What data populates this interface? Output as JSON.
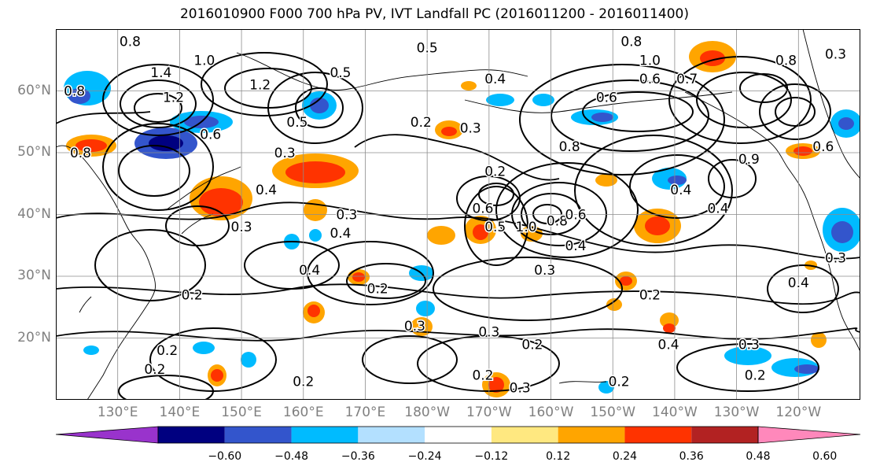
{
  "title": "2016010900 F000 700 hPa PV, IVT Landfall PC (2016011200 - 2016011400)",
  "lat_labels": [
    {
      "text": "60°N",
      "lat": 60
    },
    {
      "text": "50°N",
      "lat": 50
    },
    {
      "text": "40°N",
      "lat": 40
    },
    {
      "text": "30°N",
      "lat": 30
    },
    {
      "text": "20°N",
      "lat": 20
    }
  ],
  "lon_labels": [
    {
      "text": "130°E",
      "lon": 130
    },
    {
      "text": "140°E",
      "lon": 140
    },
    {
      "text": "150°E",
      "lon": 150
    },
    {
      "text": "160°E",
      "lon": 160
    },
    {
      "text": "170°E",
      "lon": 170
    },
    {
      "text": "180°W",
      "lon": 180
    },
    {
      "text": "170°W",
      "lon": 190
    },
    {
      "text": "160°W",
      "lon": 200
    },
    {
      "text": "150°W",
      "lon": 210
    },
    {
      "text": "140°W",
      "lon": 220
    },
    {
      "text": "130°W",
      "lon": 230
    },
    {
      "text": "120°W",
      "lon": 240
    }
  ],
  "map_extent": {
    "lon_min": 120,
    "lon_max": 250,
    "lat_min": 10,
    "lat_max": 70
  },
  "contour_labels": [
    {
      "text": "0.8",
      "lon": 132,
      "lat": 68
    },
    {
      "text": "1.0",
      "lon": 144,
      "lat": 65
    },
    {
      "text": "1.4",
      "lon": 137,
      "lat": 63
    },
    {
      "text": "1.2",
      "lon": 139,
      "lat": 59
    },
    {
      "text": "1.2",
      "lon": 153,
      "lat": 61
    },
    {
      "text": "0.8",
      "lon": 123,
      "lat": 60
    },
    {
      "text": "0.6",
      "lon": 145,
      "lat": 53
    },
    {
      "text": "0.8",
      "lon": 124,
      "lat": 50
    },
    {
      "text": "0.3",
      "lon": 157,
      "lat": 50
    },
    {
      "text": "0.5",
      "lon": 159,
      "lat": 55
    },
    {
      "text": "0.5",
      "lon": 166,
      "lat": 63
    },
    {
      "text": "0.5",
      "lon": 180,
      "lat": 67
    },
    {
      "text": "0.4",
      "lon": 191,
      "lat": 62
    },
    {
      "text": "0.2",
      "lon": 179,
      "lat": 55
    },
    {
      "text": "0.3",
      "lon": 187,
      "lat": 54
    },
    {
      "text": "0.2",
      "lon": 191,
      "lat": 47
    },
    {
      "text": "0.4",
      "lon": 154,
      "lat": 44
    },
    {
      "text": "0.3",
      "lon": 150,
      "lat": 38
    },
    {
      "text": "0.3",
      "lon": 167,
      "lat": 40
    },
    {
      "text": "0.4",
      "lon": 166,
      "lat": 37
    },
    {
      "text": "0.4",
      "lon": 161,
      "lat": 31
    },
    {
      "text": "0.2",
      "lon": 142,
      "lat": 27
    },
    {
      "text": "0.2",
      "lon": 172,
      "lat": 28
    },
    {
      "text": "0.3",
      "lon": 178,
      "lat": 22
    },
    {
      "text": "0.2",
      "lon": 138,
      "lat": 18
    },
    {
      "text": "0.2",
      "lon": 136,
      "lat": 15
    },
    {
      "text": "0.2",
      "lon": 160,
      "lat": 13
    },
    {
      "text": "0.6",
      "lon": 189,
      "lat": 41
    },
    {
      "text": "0.5",
      "lon": 191,
      "lat": 38
    },
    {
      "text": "1.0",
      "lon": 196,
      "lat": 38
    },
    {
      "text": "0.8",
      "lon": 201,
      "lat": 39
    },
    {
      "text": "0.6",
      "lon": 204,
      "lat": 40
    },
    {
      "text": "0.4",
      "lon": 204,
      "lat": 35
    },
    {
      "text": "0.3",
      "lon": 199,
      "lat": 31
    },
    {
      "text": "0.8",
      "lon": 203,
      "lat": 51
    },
    {
      "text": "0.6",
      "lon": 209,
      "lat": 59
    },
    {
      "text": "0.4",
      "lon": 221,
      "lat": 44
    },
    {
      "text": "0.4",
      "lon": 227,
      "lat": 41
    },
    {
      "text": "0.8",
      "lon": 213,
      "lat": 68
    },
    {
      "text": "1.0",
      "lon": 216,
      "lat": 65
    },
    {
      "text": "0.7",
      "lon": 222,
      "lat": 62
    },
    {
      "text": "0.6",
      "lon": 216,
      "lat": 62
    },
    {
      "text": "0.8",
      "lon": 238,
      "lat": 65
    },
    {
      "text": "0.3",
      "lon": 246,
      "lat": 66
    },
    {
      "text": "0.9",
      "lon": 232,
      "lat": 49
    },
    {
      "text": "0.6",
      "lon": 244,
      "lat": 51
    },
    {
      "text": "0.3",
      "lon": 246,
      "lat": 33
    },
    {
      "text": "0.4",
      "lon": 240,
      "lat": 29
    },
    {
      "text": "0.2",
      "lon": 216,
      "lat": 27
    },
    {
      "text": "0.4",
      "lon": 219,
      "lat": 19
    },
    {
      "text": "0.3",
      "lon": 232,
      "lat": 19
    },
    {
      "text": "0.2",
      "lon": 233,
      "lat": 14
    },
    {
      "text": "0.2",
      "lon": 211,
      "lat": 13
    },
    {
      "text": "0.3",
      "lon": 195,
      "lat": 12
    },
    {
      "text": "0.2",
      "lon": 189,
      "lat": 14
    },
    {
      "text": "0.3",
      "lon": 190,
      "lat": 21
    },
    {
      "text": "0.2",
      "lon": 197,
      "lat": 19
    }
  ],
  "colorbar": {
    "colors": [
      "#9933cc",
      "#000080",
      "#3355cc",
      "#00bbff",
      "#b3e0ff",
      "#ffffff",
      "#ffe880",
      "#ffa500",
      "#ff3300",
      "#b22222",
      "#ff88bb"
    ],
    "tick_labels": [
      "−0.60",
      "−0.48",
      "−0.36",
      "−0.24",
      "−0.12",
      "0.12",
      "0.24",
      "0.36",
      "0.48",
      "0.60"
    ]
  }
}
